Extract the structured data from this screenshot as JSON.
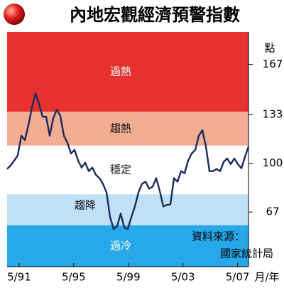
{
  "chart_data": {
    "type": "line",
    "title": "內地宏觀經濟預警指數",
    "y_unit_label": "點",
    "x_unit_label": "月/年",
    "source": [
      "資料來源：",
      "國家統計局"
    ],
    "bands": [
      {
        "label": "過熱",
        "from": 135,
        "to": 189,
        "color": "#e8322f",
        "text_color": "#ffffff"
      },
      {
        "label": "趨熱",
        "from": 112,
        "to": 135,
        "color": "#f2ad93",
        "text_color": "#111111"
      },
      {
        "label": "穩定",
        "from": 79,
        "to": 112,
        "color": "#ffffff",
        "text_color": "#111111"
      },
      {
        "label": "趨降",
        "from": 58,
        "to": 79,
        "color": "#bfe0f5",
        "text_color": "#111111"
      },
      {
        "label": "過冷",
        "from": 30,
        "to": 58,
        "color": "#27a8e8",
        "text_color": "#ffffff"
      }
    ],
    "x": [
      1990.45,
      1990.71,
      1990.97,
      1991.23,
      1991.49,
      1991.75,
      1992.01,
      1992.27,
      1992.53,
      1992.79,
      1993.05,
      1993.31,
      1993.57,
      1993.83,
      1994.09,
      1994.35,
      1994.61,
      1994.87,
      1995.13,
      1995.39,
      1995.65,
      1995.91,
      1996.17,
      1996.43,
      1996.69,
      1996.95,
      1997.21,
      1997.47,
      1997.73,
      1997.99,
      1998.25,
      1998.51,
      1998.77,
      1999.03,
      1999.29,
      1999.55,
      1999.81,
      2000.07,
      2000.33,
      2000.59,
      2000.85,
      2001.11,
      2001.37,
      2001.63,
      2001.89,
      2002.15,
      2002.41,
      2002.67,
      2002.93,
      2003.19,
      2003.45,
      2003.71,
      2003.97,
      2004.23,
      2004.49,
      2004.75,
      2005.01,
      2005.27,
      2005.53,
      2005.79,
      2006.05,
      2006.31,
      2006.57,
      2006.83,
      2007.09,
      2007.35,
      2007.61,
      2007.87,
      2008.13
    ],
    "series": [
      {
        "color": "#1b2a5c",
        "values": [
          96.2,
          98.6,
          101.9,
          105.3,
          118.7,
          115.8,
          125.8,
          137.8,
          147.4,
          140.2,
          131.6,
          131.6,
          118.7,
          130.6,
          136.4,
          132.1,
          118.7,
          113.9,
          106.7,
          109.1,
          101.9,
          97.1,
          100.5,
          94.7,
          97.1,
          92.3,
          90.0,
          86.1,
          80.4,
          63.6,
          55.5,
          57.4,
          66.0,
          56.5,
          55.5,
          63.6,
          70.8,
          80.4,
          86.1,
          87.6,
          82.8,
          84.2,
          90.0,
          81.3,
          70.8,
          71.8,
          72.2,
          90.0,
          87.6,
          94.7,
          93.3,
          101.9,
          106.7,
          109.1,
          118.7,
          122.5,
          111.5,
          94.7,
          94.7,
          96.2,
          94.7,
          101.0,
          103.3,
          99.5,
          103.3,
          99.5,
          96.7,
          104.3,
          111.5
        ]
      }
    ],
    "xlim": [
      1990.45,
      2008.13
    ],
    "xticks": [
      {
        "value": 1991.33,
        "label": "5/91"
      },
      {
        "value": 1995.33,
        "label": "5/95"
      },
      {
        "value": 1999.33,
        "label": "5/99"
      },
      {
        "value": 2003.33,
        "label": "5/03"
      },
      {
        "value": 2007.33,
        "label": "5/07"
      }
    ],
    "ylim": [
      30,
      189
    ],
    "yticks": [
      67,
      100,
      133,
      167
    ]
  }
}
